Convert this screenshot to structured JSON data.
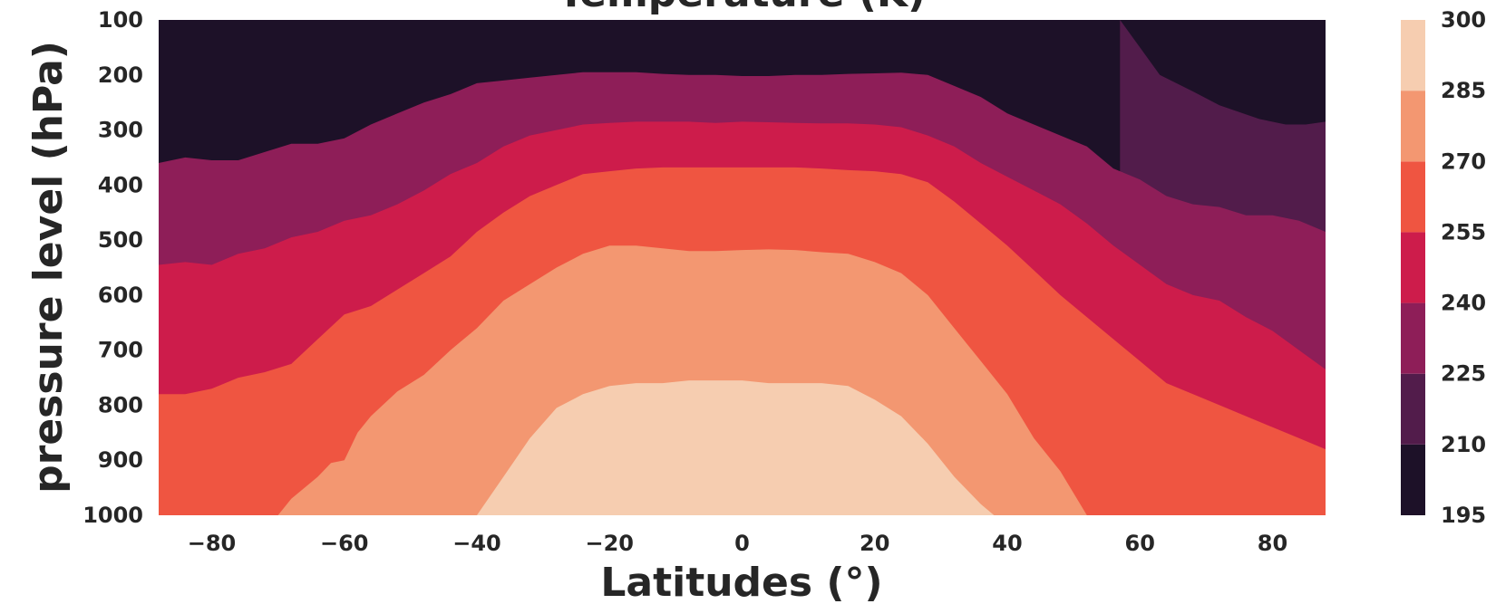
{
  "chart_data": {
    "type": "contourf",
    "title": "Temperature (K)",
    "xlabel": "Latitudes (°)",
    "ylabel": "pressure level (hPa)",
    "x_ticks": [
      "−80",
      "−60",
      "−40",
      "−20",
      "0",
      "20",
      "40",
      "60",
      "80"
    ],
    "x_tick_values": [
      -80,
      -60,
      -40,
      -20,
      0,
      20,
      40,
      60,
      80
    ],
    "xlim": [
      -88,
      88
    ],
    "y_ticks": [
      "100",
      "200",
      "300",
      "400",
      "500",
      "600",
      "700",
      "800",
      "900",
      "1000"
    ],
    "y_tick_values": [
      100,
      200,
      300,
      400,
      500,
      600,
      700,
      800,
      900,
      1000
    ],
    "ylim": [
      100,
      1000
    ],
    "y_inverted": true,
    "colorbar": {
      "ticks": [
        "195",
        "210",
        "225",
        "240",
        "255",
        "270",
        "285",
        "300"
      ],
      "levels": [
        195,
        210,
        225,
        240,
        255,
        270,
        285,
        300
      ]
    },
    "colors": [
      "#1d1128",
      "#521c4b",
      "#8e1e58",
      "#cd1c4b",
      "#ef5541",
      "#f39771",
      "#f6cdb0"
    ],
    "contours": [
      {
        "level": 210,
        "points": [
          [
            57,
            100
          ],
          [
            60,
            150
          ],
          [
            63,
            200
          ],
          [
            68,
            230
          ],
          [
            72,
            255
          ],
          [
            78,
            280
          ],
          [
            82,
            290
          ],
          [
            85,
            290
          ],
          [
            88,
            285
          ]
        ]
      },
      {
        "level": 225,
        "points": [
          [
            -88,
            360
          ],
          [
            -84,
            350
          ],
          [
            -80,
            355
          ],
          [
            -76,
            355
          ],
          [
            -72,
            340
          ],
          [
            -68,
            325
          ],
          [
            -64,
            325
          ],
          [
            -60,
            315
          ],
          [
            -56,
            290
          ],
          [
            -52,
            270
          ],
          [
            -48,
            250
          ],
          [
            -44,
            235
          ],
          [
            -40,
            215
          ],
          [
            -36,
            210
          ],
          [
            -32,
            205
          ],
          [
            -28,
            200
          ],
          [
            -24,
            195
          ],
          [
            -20,
            195
          ],
          [
            -16,
            195
          ],
          [
            -12,
            198
          ],
          [
            -8,
            200
          ],
          [
            -4,
            200
          ],
          [
            0,
            202
          ],
          [
            4,
            202
          ],
          [
            8,
            200
          ],
          [
            12,
            200
          ],
          [
            16,
            198
          ],
          [
            20,
            197
          ],
          [
            24,
            196
          ],
          [
            28,
            200
          ],
          [
            32,
            220
          ],
          [
            36,
            240
          ],
          [
            40,
            270
          ],
          [
            44,
            290
          ],
          [
            48,
            310
          ],
          [
            52,
            330
          ],
          [
            56,
            370
          ],
          [
            60,
            390
          ],
          [
            64,
            420
          ],
          [
            68,
            435
          ],
          [
            72,
            440
          ],
          [
            76,
            455
          ],
          [
            80,
            455
          ],
          [
            84,
            465
          ],
          [
            88,
            485
          ]
        ]
      },
      {
        "level": 240,
        "points": [
          [
            -88,
            545
          ],
          [
            -84,
            540
          ],
          [
            -80,
            545
          ],
          [
            -76,
            525
          ],
          [
            -72,
            515
          ],
          [
            -68,
            495
          ],
          [
            -64,
            485
          ],
          [
            -60,
            465
          ],
          [
            -56,
            455
          ],
          [
            -52,
            435
          ],
          [
            -48,
            410
          ],
          [
            -44,
            380
          ],
          [
            -40,
            360
          ],
          [
            -36,
            330
          ],
          [
            -32,
            310
          ],
          [
            -28,
            300
          ],
          [
            -24,
            290
          ],
          [
            -20,
            287
          ],
          [
            -16,
            285
          ],
          [
            -12,
            285
          ],
          [
            -8,
            285
          ],
          [
            -4,
            287
          ],
          [
            0,
            285
          ],
          [
            4,
            286
          ],
          [
            8,
            287
          ],
          [
            12,
            288
          ],
          [
            16,
            288
          ],
          [
            20,
            290
          ],
          [
            24,
            295
          ],
          [
            28,
            310
          ],
          [
            32,
            330
          ],
          [
            36,
            360
          ],
          [
            40,
            385
          ],
          [
            44,
            410
          ],
          [
            48,
            435
          ],
          [
            52,
            470
          ],
          [
            56,
            510
          ],
          [
            60,
            545
          ],
          [
            64,
            580
          ],
          [
            68,
            600
          ],
          [
            72,
            610
          ],
          [
            76,
            640
          ],
          [
            80,
            665
          ],
          [
            84,
            700
          ],
          [
            88,
            735
          ]
        ]
      },
      {
        "level": 255,
        "points": [
          [
            -88,
            780
          ],
          [
            -84,
            780
          ],
          [
            -80,
            770
          ],
          [
            -76,
            750
          ],
          [
            -72,
            740
          ],
          [
            -68,
            725
          ],
          [
            -64,
            680
          ],
          [
            -60,
            635
          ],
          [
            -56,
            620
          ],
          [
            -52,
            590
          ],
          [
            -48,
            560
          ],
          [
            -44,
            530
          ],
          [
            -40,
            485
          ],
          [
            -36,
            450
          ],
          [
            -32,
            420
          ],
          [
            -28,
            400
          ],
          [
            -24,
            380
          ],
          [
            -20,
            375
          ],
          [
            -16,
            370
          ],
          [
            -12,
            368
          ],
          [
            -8,
            368
          ],
          [
            -4,
            368
          ],
          [
            0,
            368
          ],
          [
            4,
            368
          ],
          [
            8,
            368
          ],
          [
            12,
            370
          ],
          [
            16,
            373
          ],
          [
            20,
            375
          ],
          [
            24,
            380
          ],
          [
            28,
            395
          ],
          [
            32,
            430
          ],
          [
            36,
            470
          ],
          [
            40,
            510
          ],
          [
            44,
            555
          ],
          [
            48,
            600
          ],
          [
            52,
            640
          ],
          [
            56,
            680
          ],
          [
            60,
            720
          ],
          [
            64,
            760
          ],
          [
            68,
            780
          ],
          [
            72,
            800
          ],
          [
            76,
            820
          ],
          [
            80,
            840
          ],
          [
            84,
            860
          ],
          [
            88,
            880
          ]
        ]
      },
      {
        "level": 270,
        "points": [
          [
            -70,
            1000
          ],
          [
            -68,
            970
          ],
          [
            -64,
            930
          ],
          [
            -62,
            905
          ],
          [
            -60,
            900
          ],
          [
            -58,
            850
          ],
          [
            -56,
            820
          ],
          [
            -52,
            775
          ],
          [
            -48,
            745
          ],
          [
            -44,
            700
          ],
          [
            -40,
            660
          ],
          [
            -36,
            610
          ],
          [
            -32,
            580
          ],
          [
            -28,
            550
          ],
          [
            -24,
            525
          ],
          [
            -20,
            510
          ],
          [
            -16,
            510
          ],
          [
            -12,
            515
          ],
          [
            -8,
            520
          ],
          [
            -4,
            520
          ],
          [
            0,
            518
          ],
          [
            4,
            517
          ],
          [
            8,
            518
          ],
          [
            12,
            522
          ],
          [
            16,
            525
          ],
          [
            20,
            540
          ],
          [
            24,
            560
          ],
          [
            28,
            600
          ],
          [
            32,
            660
          ],
          [
            36,
            720
          ],
          [
            40,
            780
          ],
          [
            44,
            860
          ],
          [
            48,
            920
          ],
          [
            52,
            1000
          ]
        ]
      },
      {
        "level": 285,
        "points": [
          [
            -40,
            1000
          ],
          [
            -36,
            930
          ],
          [
            -32,
            860
          ],
          [
            -28,
            805
          ],
          [
            -24,
            780
          ],
          [
            -20,
            765
          ],
          [
            -16,
            760
          ],
          [
            -12,
            760
          ],
          [
            -8,
            755
          ],
          [
            -4,
            755
          ],
          [
            0,
            755
          ],
          [
            4,
            760
          ],
          [
            8,
            760
          ],
          [
            12,
            760
          ],
          [
            16,
            765
          ],
          [
            20,
            790
          ],
          [
            24,
            820
          ],
          [
            28,
            870
          ],
          [
            32,
            930
          ],
          [
            36,
            980
          ],
          [
            38,
            1000
          ]
        ]
      }
    ]
  }
}
